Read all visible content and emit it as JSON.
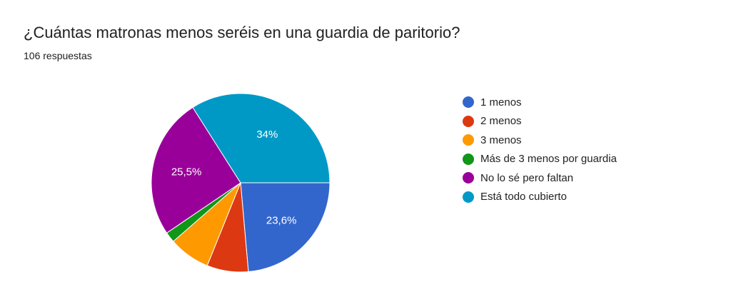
{
  "card": {
    "title": "¿Cuántas matronas menos seréis en una guardia de paritorio?",
    "response_count": "106 respuestas"
  },
  "chart_data": {
    "type": "pie",
    "title": "¿Cuántas matronas menos seréis en una guardia de paritorio?",
    "subtitle": "106 respuestas",
    "legend_position": "right",
    "start_angle_deg": 90,
    "direction": "clockwise",
    "slices": [
      {
        "name": "1 menos",
        "value": 23.6,
        "color": "#3366cc",
        "label": "23,6%"
      },
      {
        "name": "2 menos",
        "value": 7.5,
        "color": "#dc3912",
        "label": ""
      },
      {
        "name": "3 menos",
        "value": 7.5,
        "color": "#ff9900",
        "label": ""
      },
      {
        "name": "Más de 3 menos por guardia",
        "value": 1.9,
        "color": "#109618",
        "label": ""
      },
      {
        "name": "No lo sé pero faltan",
        "value": 25.5,
        "color": "#990099",
        "label": "25,5%"
      },
      {
        "name": "Está todo cubierto",
        "value": 34.0,
        "color": "#0099c6",
        "label": "34%"
      }
    ]
  }
}
